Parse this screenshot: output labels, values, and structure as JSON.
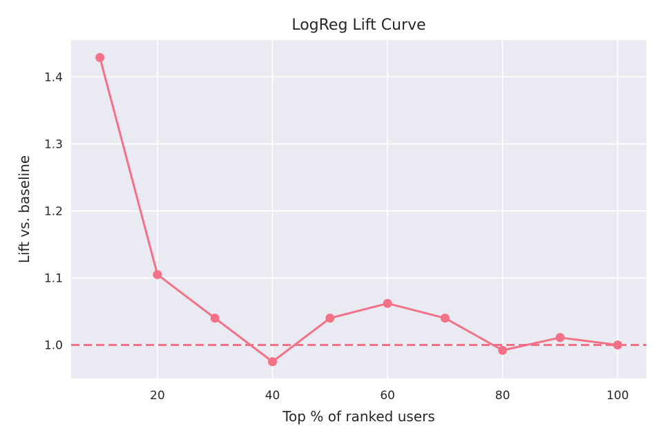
{
  "chart_data": {
    "type": "line",
    "title": "LogReg Lift Curve",
    "xlabel": "Top % of ranked users",
    "ylabel": "Lift vs. baseline",
    "xlim": [
      5,
      105
    ],
    "ylim": [
      0.95,
      1.455
    ],
    "xticks": [
      "20",
      "40",
      "60",
      "80",
      "100"
    ],
    "yticks": [
      "1.0",
      "1.1",
      "1.2",
      "1.3",
      "1.4"
    ],
    "grid": true,
    "series": [
      {
        "x": [
          10,
          20,
          30,
          40,
          50,
          60,
          70,
          80,
          90,
          100
        ],
        "values": [
          1.429,
          1.105,
          1.04,
          0.975,
          1.04,
          1.062,
          1.04,
          0.992,
          1.011,
          1.0
        ],
        "color": "#f37187",
        "marker": "circle"
      }
    ],
    "reference_line": {
      "y": 1.0,
      "style": "dashed",
      "color": "#f37187"
    },
    "colors": {
      "background": "#eaeaf2",
      "grid": "#ffffff"
    }
  }
}
